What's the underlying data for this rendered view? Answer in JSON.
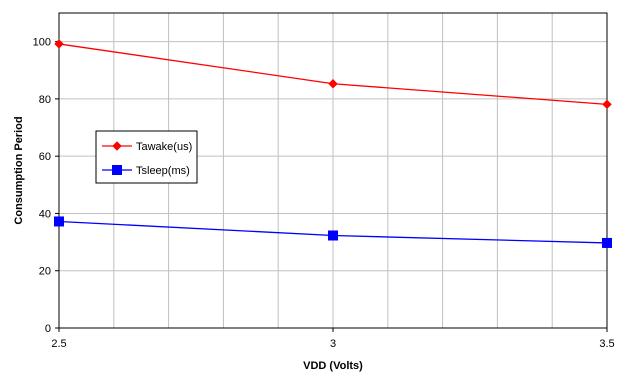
{
  "chart_data": {
    "type": "line",
    "title": "",
    "xlabel": "VDD (Volts)",
    "ylabel": "Consumption Period",
    "x": [
      2.5,
      3,
      3.5
    ],
    "x_ticks": [
      "2.5",
      "3",
      "3.5"
    ],
    "y_ticks": [
      "0",
      "20",
      "40",
      "60",
      "80",
      "100"
    ],
    "xlim": [
      2.5,
      3.5
    ],
    "ylim": [
      0,
      110
    ],
    "grid": true,
    "legend_position": "left",
    "series": [
      {
        "name": "Tawake(us)",
        "marker": "diamond",
        "color": "#ff0000",
        "values": [
          99.2,
          85.3,
          78.1
        ]
      },
      {
        "name": "Tsleep(ms)",
        "marker": "square",
        "color": "#0000ff",
        "values": [
          37.2,
          32.3,
          29.7
        ]
      }
    ]
  }
}
